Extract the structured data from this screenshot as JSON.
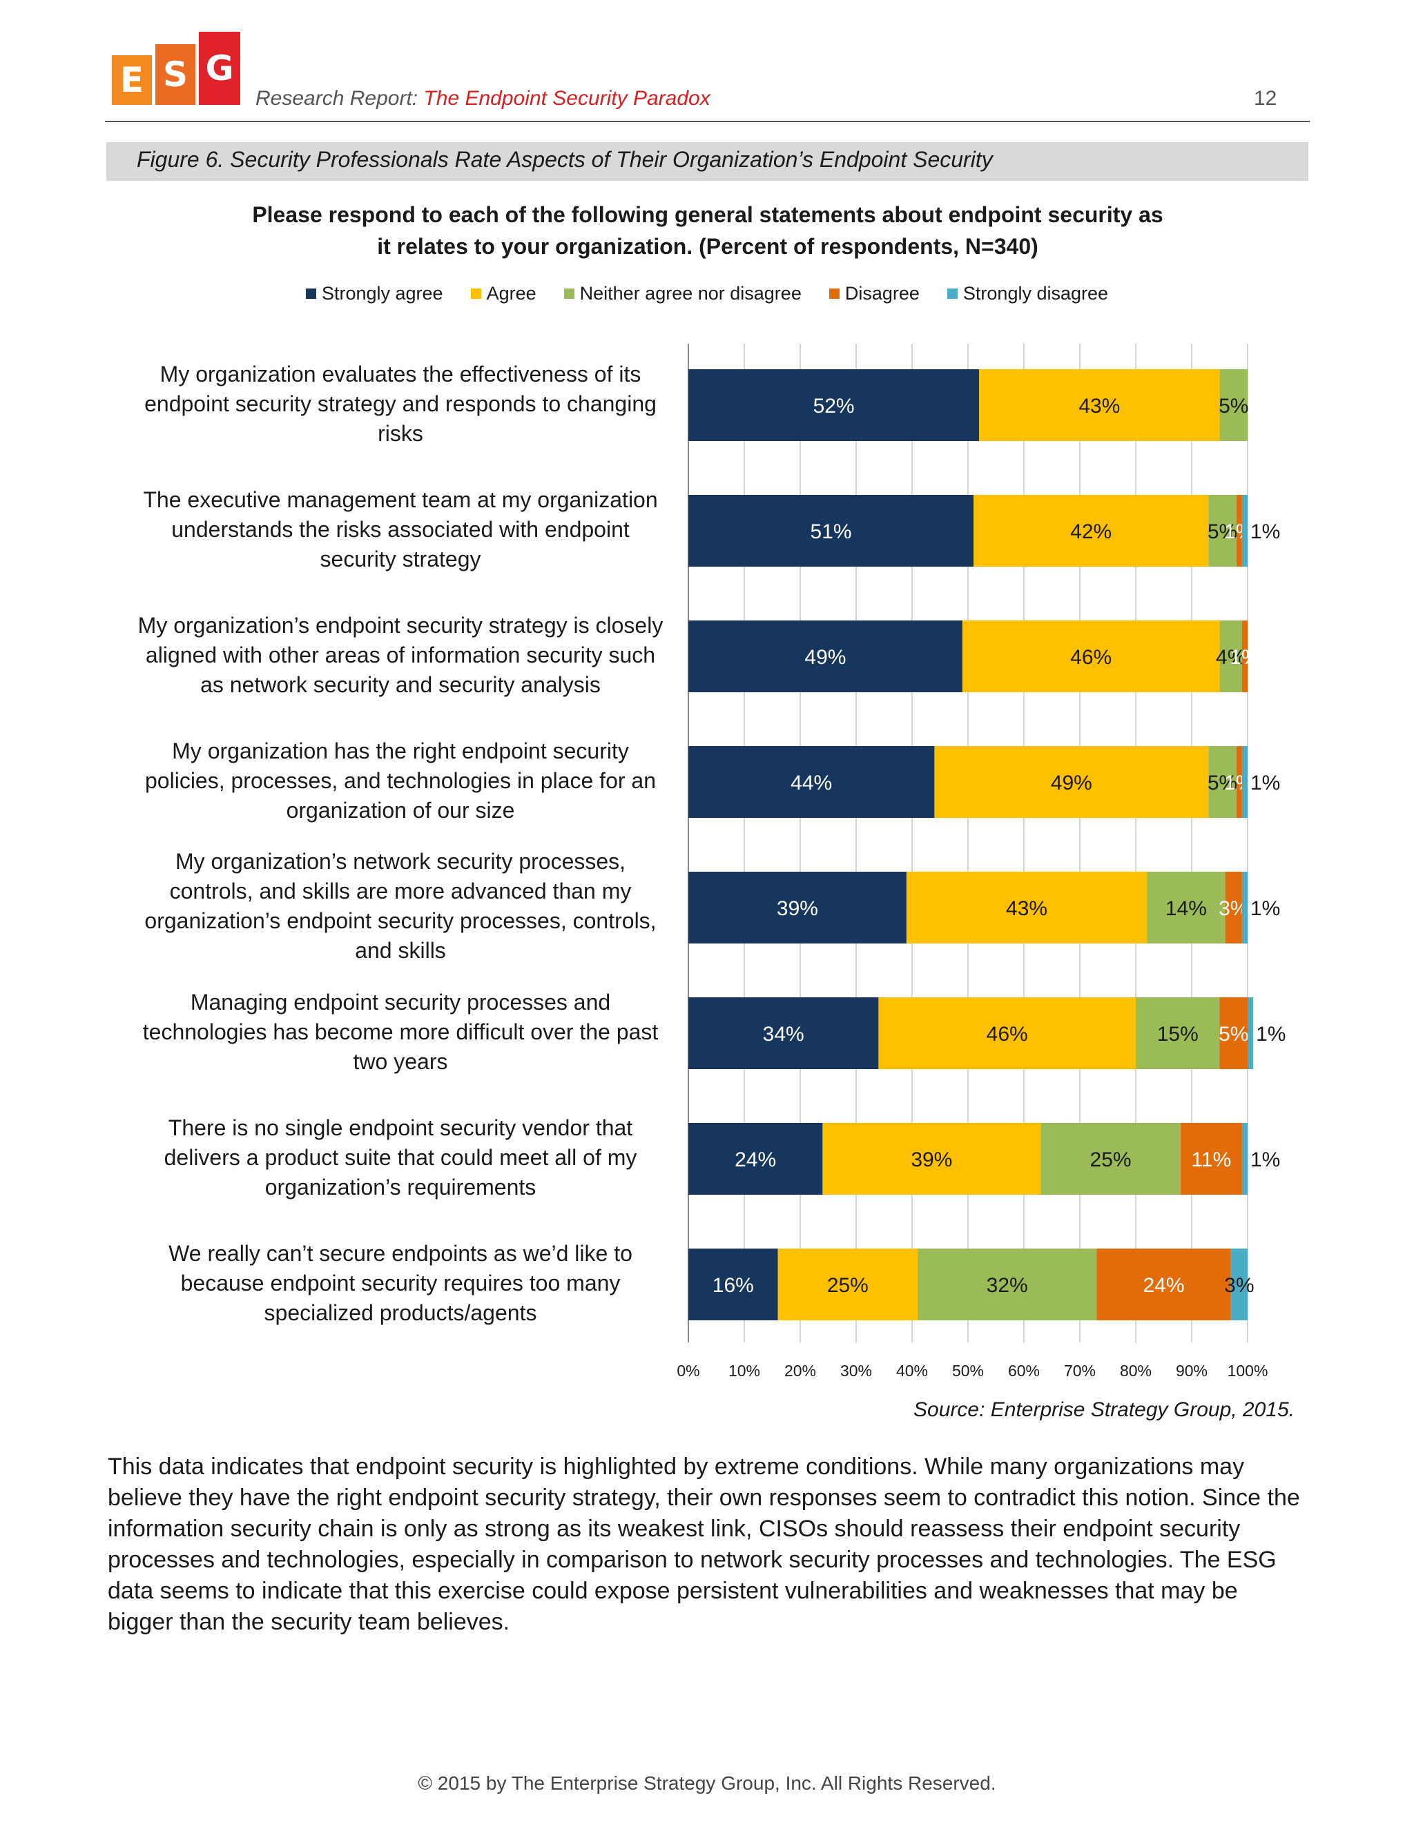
{
  "header": {
    "logo_letters": [
      "E",
      "S",
      "G"
    ],
    "report_prefix": "Research Report:",
    "report_title": "The Endpoint Security Paradox",
    "page_number": "12"
  },
  "figure_caption": "Figure 6. Security Professionals Rate Aspects of Their Organization’s Endpoint Security",
  "chart_data": {
    "type": "bar",
    "orientation": "horizontal",
    "stacked": true,
    "title_line1": "Please respond to each of the following general statements about endpoint security as",
    "title_line2": "it relates to your organization. (Percent of respondents, N=340)",
    "legend_position": "top",
    "grid": true,
    "xlim": [
      0,
      100
    ],
    "x_ticks": [
      "0%",
      "10%",
      "20%",
      "30%",
      "40%",
      "50%",
      "60%",
      "70%",
      "80%",
      "90%",
      "100%"
    ],
    "categories": [
      "My organization evaluates the effectiveness of its endpoint security strategy and responds to changing risks",
      "The executive management team at my organization understands the risks associated with endpoint security strategy",
      "My organization’s endpoint security strategy is closely aligned with other areas of information security such as network security and security analysis",
      "My organization has the right endpoint security policies, processes, and technologies in place for an organization of our size",
      "My organization’s network security processes, controls, and skills are more advanced than my organization’s endpoint security processes, controls, and skills",
      "Managing endpoint security processes and technologies has become more difficult over the past two years",
      "There is no single endpoint security vendor that delivers a product suite that could meet all of my organization’s requirements",
      "We really can’t secure endpoints as we’d like to because endpoint security requires too many specialized products/agents"
    ],
    "series": [
      {
        "name": "Strongly agree",
        "color": "#17365d",
        "label_color": "#ffffff",
        "values": [
          52,
          51,
          49,
          44,
          39,
          34,
          24,
          16
        ]
      },
      {
        "name": "Agree",
        "color": "#ffc000",
        "label_color": "#1a1a1a",
        "values": [
          43,
          42,
          46,
          49,
          43,
          46,
          39,
          25
        ]
      },
      {
        "name": "Neither agree nor disagree",
        "color": "#9bbb59",
        "label_color": "#1a1a1a",
        "values": [
          5,
          5,
          4,
          5,
          14,
          15,
          25,
          32
        ]
      },
      {
        "name": "Disagree",
        "color": "#e36c0a",
        "label_color": "#ffffff",
        "values": [
          0,
          1,
          1,
          1,
          3,
          5,
          11,
          24
        ]
      },
      {
        "name": "Strongly disagree",
        "color": "#4bacc6",
        "label_color": "#1a1a1a",
        "values": [
          0,
          1,
          0,
          1,
          1,
          1,
          1,
          3
        ]
      }
    ]
  },
  "statements": [
    [
      "My organization evaluates the effectiveness of its",
      "endpoint security strategy and responds to changing",
      "risks"
    ],
    [
      "The executive management team at my organization",
      "understands the risks associated with endpoint",
      "security strategy"
    ],
    [
      "My organization’s endpoint security strategy is closely",
      "aligned with other areas of information security such",
      "as network security and security analysis"
    ],
    [
      "My organization has the right endpoint security",
      "policies, processes, and technologies in place for an",
      "organization of our size"
    ],
    [
      "My organization’s network security processes,",
      "controls, and skills are more advanced than my",
      "organization’s endpoint security processes, controls,",
      "and skills"
    ],
    [
      "Managing endpoint security processes and",
      "technologies has become more difficult over the past",
      "two years"
    ],
    [
      "There is no single endpoint security vendor that",
      "delivers a product suite that could meet all of my",
      "organization’s requirements"
    ],
    [
      "We really can’t secure endpoints as we’d like to",
      "because endpoint security requires too many",
      "specialized products/agents"
    ]
  ],
  "source": "Source: Enterprise Strategy Group, 2015.",
  "body_text": "This data indicates that endpoint security is highlighted by extreme conditions. While many organizations may believe they have the right endpoint security strategy, their own responses seem to contradict this notion. Since the information security chain is only as strong as its weakest link, CISOs should reassess their endpoint security processes and technologies, especially in comparison to network security processes and technologies. The ESG data seems to indicate that this exercise could expose persistent vulnerabilities and weaknesses that may be bigger than the security team believes.",
  "footer": "© 2015 by The Enterprise Strategy Group, Inc. All Rights Reserved."
}
